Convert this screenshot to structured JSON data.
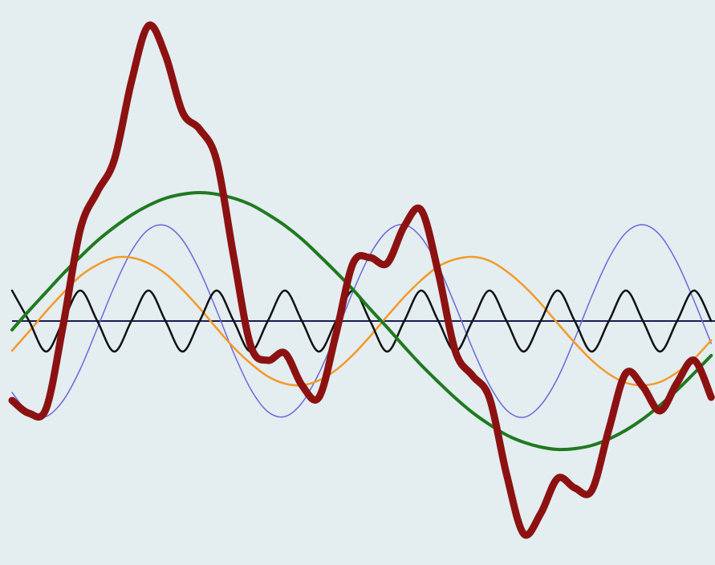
{
  "chart_data": {
    "type": "line",
    "x": [
      0,
      0.2125,
      0.425,
      0.6375,
      0.85,
      1.0625,
      1.275,
      1.4875,
      1.7,
      1.9125,
      2.125,
      2.3375,
      2.55,
      2.7625,
      2.975,
      3.1875,
      3.4,
      3.6125,
      3.825,
      4.0375,
      4.25,
      4.4625,
      4.675,
      4.8875,
      5.1,
      5.3125,
      5.525,
      5.7375,
      5.95,
      6.1625,
      6.375,
      6.5875,
      6.8,
      7.0125,
      7.225,
      7.4375,
      7.65,
      7.8625,
      8.075,
      8.2875,
      8.5,
      8.7125
    ],
    "xlim": [
      0,
      8.76
    ],
    "ylim": [
      -3,
      4
    ],
    "baseline": true,
    "series": [
      {
        "color": "#6a6ad8",
        "linewidth": 1.5,
        "values": [
          -0.89,
          -1.15,
          -1.19,
          -0.99,
          -0.6,
          -0.09,
          0.43,
          0.87,
          1.14,
          1.19,
          1.01,
          0.63,
          0.13,
          -0.4,
          -0.85,
          -1.13,
          -1.19,
          -1.02,
          -0.65,
          -0.16,
          0.37,
          0.83,
          1.12,
          1.2,
          1.04,
          0.68,
          0.19,
          -0.34,
          -0.8,
          -1.11,
          -1.2,
          -1.05,
          -0.71,
          -0.22,
          0.31,
          0.78,
          1.1,
          1.2,
          1.07,
          0.73,
          0.25,
          -0.28
        ]
      },
      {
        "color": "#f39a2a",
        "linewidth": 2.5,
        "values": [
          -0.37,
          -0.13,
          0.12,
          0.35,
          0.56,
          0.7,
          0.79,
          0.79,
          0.72,
          0.59,
          0.39,
          0.16,
          -0.09,
          -0.33,
          -0.53,
          -0.69,
          -0.78,
          -0.8,
          -0.74,
          -0.61,
          -0.42,
          -0.19,
          0.06,
          0.3,
          0.51,
          0.68,
          0.77,
          0.8,
          0.75,
          0.62,
          0.44,
          0.22,
          -0.03,
          -0.27,
          -0.49,
          -0.66,
          -0.77,
          -0.8,
          -0.76,
          -0.64,
          -0.47,
          -0.24
        ]
      },
      {
        "color": "#111111",
        "linewidth": 2.5,
        "values": [
          0.38,
          0,
          -0.38,
          0,
          0.38,
          0,
          -0.38,
          0,
          0.38,
          0,
          -0.38,
          0,
          0.38,
          0,
          -0.38,
          0,
          0.38,
          0,
          -0.38,
          0,
          0.38,
          0,
          -0.38,
          0,
          0.38,
          0,
          -0.38,
          0,
          0.38,
          0,
          -0.38,
          0,
          0.38,
          0,
          -0.38,
          0,
          0.38,
          0,
          -0.38,
          0,
          0.38,
          0
        ]
      },
      {
        "color": "#1f7a1f",
        "linewidth": 4,
        "values": [
          -0.11,
          0.13,
          0.36,
          0.59,
          0.8,
          1.0,
          1.17,
          1.32,
          1.44,
          1.53,
          1.58,
          1.6,
          1.58,
          1.53,
          1.45,
          1.33,
          1.19,
          1.02,
          0.82,
          0.61,
          0.39,
          0.15,
          -0.08,
          -0.32,
          -0.55,
          -0.76,
          -0.96,
          -1.14,
          -1.29,
          -1.42,
          -1.51,
          -1.57,
          -1.6,
          -1.59,
          -1.55,
          -1.47,
          -1.36,
          -1.22,
          -1.05,
          -0.86,
          -0.65,
          -0.43
        ]
      },
      {
        "color": "#8c1212",
        "linewidth": 9,
        "values": [
          -0.99,
          -1.15,
          -1.09,
          -0.05,
          1.14,
          1.61,
          2.01,
          2.98,
          3.68,
          3.31,
          2.6,
          2.39,
          2.0,
          0.8,
          -0.31,
          -0.49,
          -0.4,
          -0.8,
          -0.95,
          -0.16,
          0.72,
          0.79,
          0.72,
          1.18,
          1.38,
          0.6,
          -0.38,
          -0.68,
          -0.96,
          -1.91,
          -2.65,
          -2.4,
          -1.96,
          -2.08,
          -2.11,
          -1.35,
          -0.65,
          -0.82,
          -1.12,
          -0.77,
          -0.49,
          -0.95
        ]
      }
    ]
  }
}
